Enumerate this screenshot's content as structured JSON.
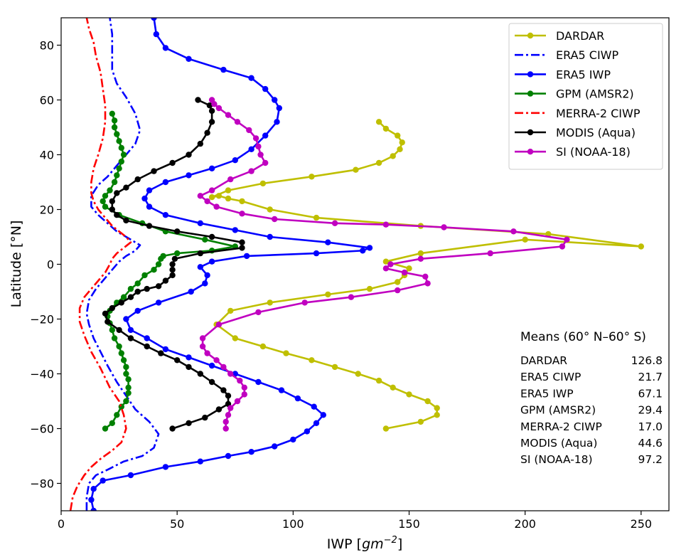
{
  "chart_data": {
    "type": "line",
    "xlabel_prefix": "IWP [",
    "xlabel_unit": "gm",
    "xlabel_exp": "−2",
    "xlabel_suffix": "]",
    "ylabel": "Latitude [°N]",
    "xlim": [
      0,
      262
    ],
    "ylim": [
      -90,
      90
    ],
    "xticks": [
      0,
      50,
      100,
      150,
      200,
      250
    ],
    "yticks": [
      -80,
      -60,
      -40,
      -20,
      0,
      20,
      40,
      60,
      80
    ],
    "grid": false,
    "legend_position": "upper-right",
    "series": [
      {
        "name": "DARDAR",
        "color": "#bfbf00",
        "style": "solid-dots",
        "x": [
          140,
          155,
          162,
          162,
          158,
          150,
          143,
          137,
          128,
          118,
          108,
          97,
          87,
          75,
          67,
          73,
          90,
          115,
          133,
          145,
          148,
          150,
          140,
          155,
          200,
          250,
          210,
          155,
          110,
          90,
          78,
          72,
          68,
          65,
          72,
          87,
          108,
          127,
          137,
          143,
          146,
          147,
          145,
          140,
          137
        ],
        "y": [
          -60,
          -57.5,
          -55,
          -52.5,
          -50,
          -47.5,
          -45,
          -42.5,
          -40,
          -37.5,
          -35,
          -32.5,
          -30,
          -27,
          -22,
          -17,
          -14,
          -11,
          -9,
          -6.5,
          -4,
          -1.5,
          1,
          4,
          9,
          6.5,
          11,
          14,
          17,
          20,
          23,
          24,
          25,
          24.5,
          27,
          29.5,
          32,
          34.5,
          37,
          39.5,
          42,
          44.5,
          47,
          49.5,
          52
        ]
      },
      {
        "name": "ERA5 CIWP",
        "color": "#0000ff",
        "style": "dashdot",
        "x": [
          11,
          11,
          12,
          15,
          20,
          27,
          35,
          40,
          42,
          38,
          32,
          28,
          24,
          20,
          17,
          14,
          12,
          11,
          12,
          15,
          19,
          22,
          25,
          28,
          32,
          34,
          30,
          24,
          20,
          16,
          13,
          13,
          16,
          20,
          24,
          28,
          32,
          34,
          32,
          28,
          24,
          22,
          22,
          22,
          21
        ],
        "y": [
          -90,
          -85,
          -80,
          -77,
          -75,
          -72,
          -70,
          -67,
          -62,
          -57.5,
          -53,
          -48,
          -43,
          -37,
          -32,
          -27,
          -22,
          -18,
          -13,
          -9,
          -5,
          -2,
          1,
          3,
          5,
          7,
          9,
          12,
          15,
          18,
          21,
          25,
          29,
          32,
          36,
          40,
          44,
          49,
          55,
          61,
          66,
          71,
          77,
          84,
          90
        ]
      },
      {
        "name": "ERA5 IWP",
        "color": "#0000ff",
        "style": "solid-dots",
        "x": [
          14,
          13,
          14,
          18,
          30,
          45,
          60,
          72,
          82,
          92,
          100,
          106,
          110,
          113,
          109,
          102,
          95,
          85,
          75,
          65,
          55,
          45,
          37,
          30,
          28,
          33,
          42,
          56,
          62,
          63,
          60,
          65,
          80,
          110,
          130,
          133,
          115,
          90,
          75,
          60,
          45,
          38,
          36,
          38,
          45,
          55,
          65,
          75,
          82,
          88,
          93,
          94,
          92,
          88,
          82,
          70,
          55,
          45,
          41,
          40
        ],
        "y": [
          -90,
          -86,
          -82,
          -79,
          -77,
          -74,
          -72,
          -70,
          -68.5,
          -66.5,
          -64,
          -61,
          -58,
          -55,
          -52,
          -49,
          -46,
          -43,
          -40,
          -37,
          -34,
          -31,
          -27,
          -24,
          -20,
          -17,
          -14,
          -10,
          -7,
          -4,
          -1,
          1,
          3,
          4,
          5,
          6,
          8,
          10,
          12.5,
          15,
          18,
          21,
          24,
          27,
          30,
          32.5,
          35,
          38,
          42,
          47,
          52,
          57,
          60,
          64,
          68,
          71,
          75,
          79,
          84,
          90
        ]
      },
      {
        "name": "GPM (AMSR2)",
        "color": "#008000",
        "style": "solid-dots",
        "x": [
          19,
          22,
          24,
          26,
          28,
          29,
          29,
          29,
          28,
          28,
          27,
          26,
          25,
          23,
          22,
          21,
          20,
          21,
          24,
          27,
          30,
          33,
          36,
          40,
          42,
          43,
          44,
          50,
          65,
          75,
          62,
          45,
          35,
          25,
          19,
          18,
          19,
          21,
          23,
          24,
          25,
          26,
          27,
          26,
          25,
          24,
          23,
          23,
          22
        ],
        "y": [
          -60,
          -58,
          -55,
          -52,
          -50,
          -47,
          -45,
          -42,
          -40,
          -37.5,
          -35,
          -32.5,
          -30,
          -27,
          -24,
          -21.5,
          -19,
          -17,
          -14,
          -12,
          -9,
          -7,
          -4,
          -2,
          0,
          2,
          3,
          4,
          5,
          6.5,
          9,
          12,
          15,
          18,
          21,
          23,
          25,
          27,
          30,
          32.5,
          35,
          37.5,
          40,
          42.5,
          45,
          47.5,
          50,
          52.5,
          55
        ]
      },
      {
        "name": "MERRA-2 CIWP",
        "color": "#ff0000",
        "style": "dashdot",
        "x": [
          4,
          5,
          7,
          10,
          13,
          17,
          22,
          26,
          28,
          27,
          25,
          21,
          17,
          13,
          10,
          8,
          8,
          10,
          13,
          16,
          19,
          21,
          22,
          24,
          27,
          30,
          28,
          25,
          22,
          19,
          16,
          14,
          13,
          13,
          14,
          16,
          18,
          19,
          19,
          18,
          17,
          15,
          14,
          12,
          11
        ],
        "y": [
          -90,
          -85,
          -81,
          -77,
          -74,
          -71,
          -68,
          -65,
          -60,
          -55,
          -50,
          -45,
          -38,
          -32,
          -26,
          -21,
          -16,
          -12,
          -9,
          -6,
          -3,
          0,
          2,
          4,
          6,
          8,
          10,
          12,
          14,
          17,
          20,
          23,
          26,
          30,
          35,
          40,
          46,
          52,
          58,
          64,
          70,
          76,
          81,
          86,
          90
        ]
      },
      {
        "name": "MODIS (Aqua)",
        "color": "#000000",
        "style": "solid-dots",
        "x": [
          48,
          55,
          62,
          68,
          72,
          72,
          70,
          65,
          60,
          55,
          50,
          43,
          37,
          30,
          25,
          20,
          19,
          22,
          26,
          30,
          33,
          37,
          42,
          45,
          48,
          48,
          48,
          49,
          60,
          78,
          78,
          65,
          50,
          38,
          28,
          24,
          22,
          22,
          24,
          28,
          33,
          40,
          48,
          55,
          60,
          63,
          65,
          65,
          64,
          59
        ],
        "y": [
          -60,
          -58,
          -56,
          -53,
          -51,
          -48,
          -46,
          -43,
          -40,
          -37.5,
          -35,
          -32.5,
          -30,
          -27,
          -24,
          -21,
          -18,
          -16,
          -14,
          -12,
          -10,
          -9,
          -8,
          -6,
          -4,
          -2,
          0,
          2,
          4,
          6,
          8,
          10,
          12,
          14,
          16,
          18,
          20,
          23,
          26,
          28,
          31,
          34,
          37,
          40,
          44,
          48,
          52,
          56,
          58,
          60
        ]
      },
      {
        "name": "SI (NOAA-18)",
        "color": "#c000c0",
        "style": "solid-dots",
        "x": [
          71,
          71,
          72,
          73,
          76,
          79,
          79,
          77,
          73,
          70,
          67,
          63,
          61,
          61,
          68,
          85,
          105,
          125,
          145,
          158,
          157,
          148,
          140,
          142,
          155,
          185,
          216,
          218,
          195,
          165,
          140,
          118,
          92,
          78,
          67,
          63,
          60,
          65,
          73,
          82,
          88,
          86,
          85,
          84,
          81,
          76,
          72,
          68,
          66,
          65
        ],
        "y": [
          -60,
          -57.5,
          -55,
          -52.5,
          -50,
          -47.5,
          -45,
          -42.5,
          -40,
          -37.5,
          -35,
          -32.5,
          -30,
          -27,
          -22,
          -17.5,
          -14,
          -12,
          -9.5,
          -7,
          -4.5,
          -3,
          -1.5,
          0,
          2,
          4,
          6.5,
          9,
          12,
          13.5,
          14.5,
          15,
          16.5,
          18.5,
          21,
          23,
          25,
          27,
          31,
          34,
          37,
          40,
          43,
          46,
          49,
          52,
          54.5,
          57,
          58.5,
          60
        ]
      }
    ],
    "means_title": "Means (60° N–60° S)",
    "means": [
      {
        "label": "DARDAR",
        "value": "126.8"
      },
      {
        "label": "ERA5 CIWP",
        "value": "21.7"
      },
      {
        "label": "ERA5 IWP",
        "value": "67.1"
      },
      {
        "label": "GPM (AMSR2)",
        "value": "29.4"
      },
      {
        "label": "MERRA-2 CIWP",
        "value": "17.0"
      },
      {
        "label": "MODIS (Aqua)",
        "value": "44.6"
      },
      {
        "label": "SI (NOAA-18)",
        "value": "97.2"
      }
    ]
  }
}
